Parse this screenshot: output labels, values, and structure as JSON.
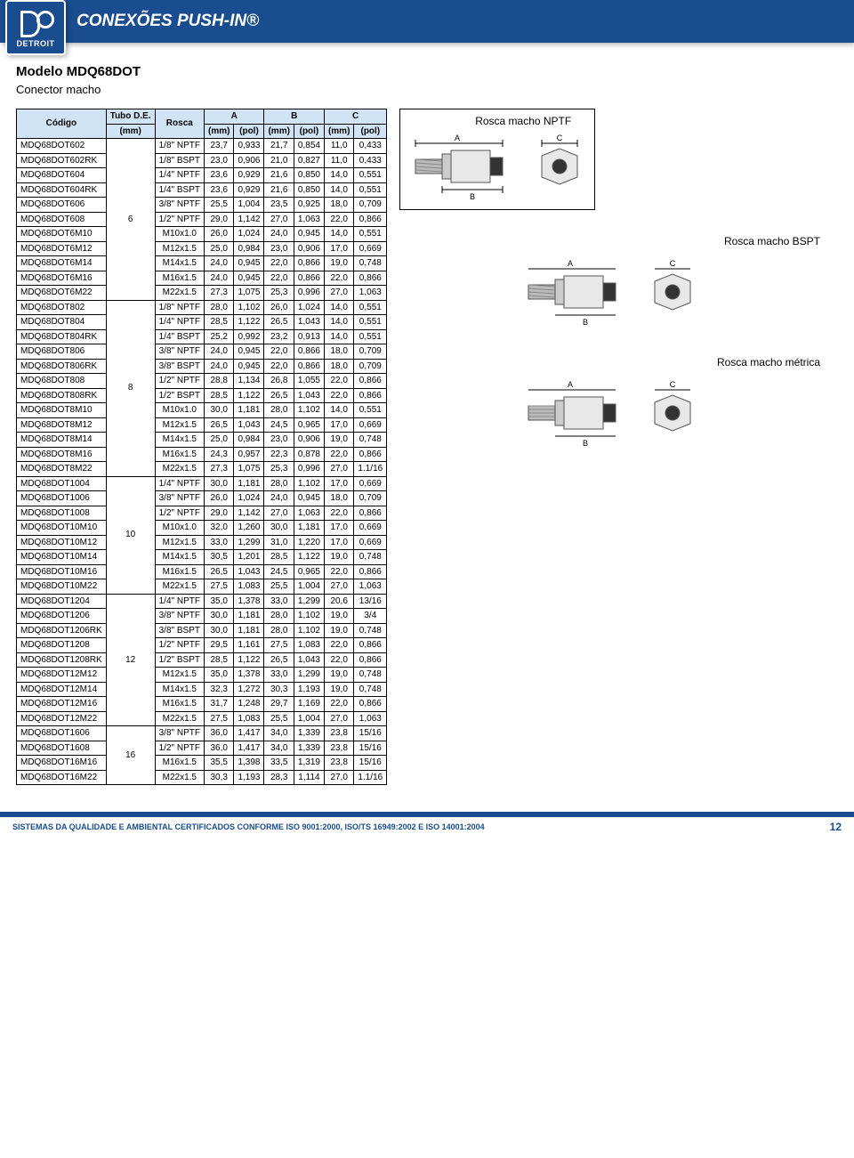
{
  "header": {
    "logo_text": "DETROIT",
    "title": "CONEXÕES PUSH-IN®"
  },
  "model": {
    "title": "Modelo MDQ68DOT",
    "subtitle": "Conector macho"
  },
  "diagrams": {
    "nptf_label": "Rosca macho NPTF",
    "bspt_label": "Rosca macho BSPT",
    "metric_label": "Rosca macho métrica"
  },
  "table": {
    "header": {
      "codigo": "Código",
      "tubo_de": "Tubo D.E.",
      "tubo_mm": "(mm)",
      "rosca": "Rosca",
      "A": "A",
      "B": "B",
      "C": "C",
      "mm": "(mm)",
      "pol": "(pol)"
    },
    "groups": [
      {
        "tubo": "6",
        "rows": [
          [
            "MDQ68DOT602",
            "1/8\" NPTF",
            "23,7",
            "0,933",
            "21,7",
            "0,854",
            "11,0",
            "0,433"
          ],
          [
            "MDQ68DOT602RK",
            "1/8\" BSPT",
            "23,0",
            "0,906",
            "21,0",
            "0,827",
            "11,0",
            "0,433"
          ],
          [
            "MDQ68DOT604",
            "1/4\" NPTF",
            "23,6",
            "0,929",
            "21,6",
            "0,850",
            "14,0",
            "0,551"
          ],
          [
            "MDQ68DOT604RK",
            "1/4\" BSPT",
            "23,6",
            "0,929",
            "21,6",
            "0,850",
            "14,0",
            "0,551"
          ],
          [
            "MDQ68DOT606",
            "3/8\" NPTF",
            "25,5",
            "1,004",
            "23,5",
            "0,925",
            "18,0",
            "0,709"
          ],
          [
            "MDQ68DOT608",
            "1/2\" NPTF",
            "29,0",
            "1,142",
            "27,0",
            "1,063",
            "22,0",
            "0,866"
          ],
          [
            "MDQ68DOT6M10",
            "M10x1.0",
            "26,0",
            "1,024",
            "24,0",
            "0,945",
            "14,0",
            "0,551"
          ],
          [
            "MDQ68DOT6M12",
            "M12x1.5",
            "25,0",
            "0,984",
            "23,0",
            "0,906",
            "17,0",
            "0,669"
          ],
          [
            "MDQ68DOT6M14",
            "M14x1.5",
            "24,0",
            "0,945",
            "22,0",
            "0,866",
            "19,0",
            "0,748"
          ],
          [
            "MDQ68DOT6M16",
            "M16x1.5",
            "24,0",
            "0,945",
            "22,0",
            "0,866",
            "22,0",
            "0,866"
          ],
          [
            "MDQ68DOT6M22",
            "M22x1.5",
            "27,3",
            "1,075",
            "25,3",
            "0,996",
            "27,0",
            "1,063"
          ]
        ]
      },
      {
        "tubo": "8",
        "rows": [
          [
            "MDQ68DOT802",
            "1/8\" NPTF",
            "28,0",
            "1,102",
            "26,0",
            "1,024",
            "14,0",
            "0,551"
          ],
          [
            "MDQ68DOT804",
            "1/4\" NPTF",
            "28,5",
            "1,122",
            "26,5",
            "1,043",
            "14,0",
            "0,551"
          ],
          [
            "MDQ68DOT804RK",
            "1/4\" BSPT",
            "25,2",
            "0,992",
            "23,2",
            "0,913",
            "14,0",
            "0,551"
          ],
          [
            "MDQ68DOT806",
            "3/8\" NPTF",
            "24,0",
            "0,945",
            "22,0",
            "0,866",
            "18,0",
            "0,709"
          ],
          [
            "MDQ68DOT806RK",
            "3/8\" BSPT",
            "24,0",
            "0,945",
            "22,0",
            "0,866",
            "18,0",
            "0,709"
          ],
          [
            "MDQ68DOT808",
            "1/2\" NPTF",
            "28,8",
            "1,134",
            "26,8",
            "1,055",
            "22,0",
            "0,866"
          ],
          [
            "MDQ68DOT808RK",
            "1/2\" BSPT",
            "28,5",
            "1,122",
            "26,5",
            "1,043",
            "22,0",
            "0,866"
          ],
          [
            "MDQ68DOT8M10",
            "M10x1.0",
            "30,0",
            "1,181",
            "28,0",
            "1,102",
            "14,0",
            "0,551"
          ],
          [
            "MDQ68DOT8M12",
            "M12x1.5",
            "26,5",
            "1,043",
            "24,5",
            "0,965",
            "17,0",
            "0,669"
          ],
          [
            "MDQ68DOT8M14",
            "M14x1.5",
            "25,0",
            "0,984",
            "23,0",
            "0,906",
            "19,0",
            "0,748"
          ],
          [
            "MDQ68DOT8M16",
            "M16x1.5",
            "24,3",
            "0,957",
            "22,3",
            "0,878",
            "22,0",
            "0,866"
          ],
          [
            "MDQ68DOT8M22",
            "M22x1.5",
            "27,3",
            "1,075",
            "25,3",
            "0,996",
            "27,0",
            "1.1/16"
          ]
        ]
      },
      {
        "tubo": "10",
        "rows": [
          [
            "MDQ68DOT1004",
            "1/4\" NPTF",
            "30,0",
            "1,181",
            "28,0",
            "1,102",
            "17,0",
            "0,669"
          ],
          [
            "MDQ68DOT1006",
            "3/8\" NPTF",
            "26,0",
            "1,024",
            "24,0",
            "0,945",
            "18,0",
            "0,709"
          ],
          [
            "MDQ68DOT1008",
            "1/2\" NPTF",
            "29,0",
            "1,142",
            "27,0",
            "1,063",
            "22,0",
            "0,866"
          ],
          [
            "MDQ68DOT10M10",
            "M10x1.0",
            "32,0",
            "1,260",
            "30,0",
            "1,181",
            "17,0",
            "0,669"
          ],
          [
            "MDQ68DOT10M12",
            "M12x1.5",
            "33,0",
            "1,299",
            "31,0",
            "1,220",
            "17,0",
            "0,669"
          ],
          [
            "MDQ68DOT10M14",
            "M14x1.5",
            "30,5",
            "1,201",
            "28,5",
            "1,122",
            "19,0",
            "0,748"
          ],
          [
            "MDQ68DOT10M16",
            "M16x1.5",
            "26,5",
            "1,043",
            "24,5",
            "0,965",
            "22,0",
            "0,866"
          ],
          [
            "MDQ68DOT10M22",
            "M22x1.5",
            "27,5",
            "1,083",
            "25,5",
            "1,004",
            "27,0",
            "1,063"
          ]
        ]
      },
      {
        "tubo": "12",
        "rows": [
          [
            "MDQ68DOT1204",
            "1/4\" NPTF",
            "35,0",
            "1,378",
            "33,0",
            "1,299",
            "20,6",
            "13/16"
          ],
          [
            "MDQ68DOT1206",
            "3/8\" NPTF",
            "30,0",
            "1,181",
            "28,0",
            "1,102",
            "19,0",
            "3/4"
          ],
          [
            "MDQ68DOT1206RK",
            "3/8\" BSPT",
            "30,0",
            "1,181",
            "28,0",
            "1,102",
            "19,0",
            "0,748"
          ],
          [
            "MDQ68DOT1208",
            "1/2\" NPTF",
            "29,5",
            "1,161",
            "27,5",
            "1,083",
            "22,0",
            "0,866"
          ],
          [
            "MDQ68DOT1208RK",
            "1/2\" BSPT",
            "28,5",
            "1,122",
            "26,5",
            "1,043",
            "22,0",
            "0,866"
          ],
          [
            "MDQ68DOT12M12",
            "M12x1.5",
            "35,0",
            "1,378",
            "33,0",
            "1,299",
            "19,0",
            "0,748"
          ],
          [
            "MDQ68DOT12M14",
            "M14x1.5",
            "32,3",
            "1,272",
            "30,3",
            "1,193",
            "19,0",
            "0,748"
          ],
          [
            "MDQ68DOT12M16",
            "M16x1.5",
            "31,7",
            "1,248",
            "29,7",
            "1,169",
            "22,0",
            "0,866"
          ],
          [
            "MDQ68DOT12M22",
            "M22x1.5",
            "27,5",
            "1,083",
            "25,5",
            "1,004",
            "27,0",
            "1,063"
          ]
        ]
      },
      {
        "tubo": "16",
        "rows": [
          [
            "MDQ68DOT1606",
            "3/8\" NPTF",
            "36,0",
            "1,417",
            "34,0",
            "1,339",
            "23,8",
            "15/16"
          ],
          [
            "MDQ68DOT1608",
            "1/2\" NPTF",
            "36,0",
            "1,417",
            "34,0",
            "1,339",
            "23,8",
            "15/16"
          ],
          [
            "MDQ68DOT16M16",
            "M16x1.5",
            "35,5",
            "1,398",
            "33,5",
            "1,319",
            "23,8",
            "15/16"
          ],
          [
            "MDQ68DOT16M22",
            "M22x1.5",
            "30,3",
            "1,193",
            "28,3",
            "1,114",
            "27,0",
            "1.1/16"
          ]
        ]
      }
    ]
  },
  "footer": {
    "text": "SISTEMAS DA QUALIDADE E AMBIENTAL CERTIFICADOS CONFORME ISO 9001:2000, ISO/TS 16949:2002 E ISO 14001:2004",
    "page": "12"
  },
  "style": {
    "header_bg": "#1a4d8f",
    "th_bg": "#d0e4f5",
    "border": "#000000"
  }
}
